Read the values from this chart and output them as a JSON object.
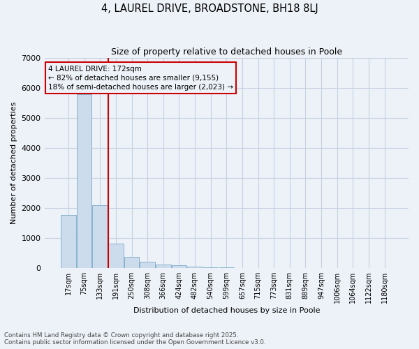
{
  "title_line1": "4, LAUREL DRIVE, BROADSTONE, BH18 8LJ",
  "title_line2": "Size of property relative to detached houses in Poole",
  "xlabel": "Distribution of detached houses by size in Poole",
  "ylabel": "Number of detached properties",
  "categories": [
    "17sqm",
    "75sqm",
    "133sqm",
    "191sqm",
    "250sqm",
    "308sqm",
    "366sqm",
    "424sqm",
    "482sqm",
    "540sqm",
    "599sqm",
    "657sqm",
    "715sqm",
    "773sqm",
    "831sqm",
    "889sqm",
    "947sqm",
    "1006sqm",
    "1064sqm",
    "1122sqm",
    "1180sqm"
  ],
  "bar_heights": [
    1780,
    5800,
    2090,
    820,
    370,
    220,
    110,
    100,
    50,
    25,
    20,
    10,
    5,
    4,
    2,
    2,
    1,
    1,
    1,
    1,
    1
  ],
  "bar_color": "#ccdcec",
  "bar_edge_color": "#7aaac8",
  "grid_color": "#c5d0e0",
  "background_color": "#edf2f8",
  "vline_x_index": 2,
  "vline_color": "#cc0000",
  "annotation_text": "4 LAUREL DRIVE: 172sqm\n← 82% of detached houses are smaller (9,155)\n18% of semi-detached houses are larger (2,023) →",
  "annotation_box_color": "#cc0000",
  "ylim": [
    0,
    7000
  ],
  "footnote_line1": "Contains HM Land Registry data © Crown copyright and database right 2025.",
  "footnote_line2": "Contains public sector information licensed under the Open Government Licence v3.0."
}
